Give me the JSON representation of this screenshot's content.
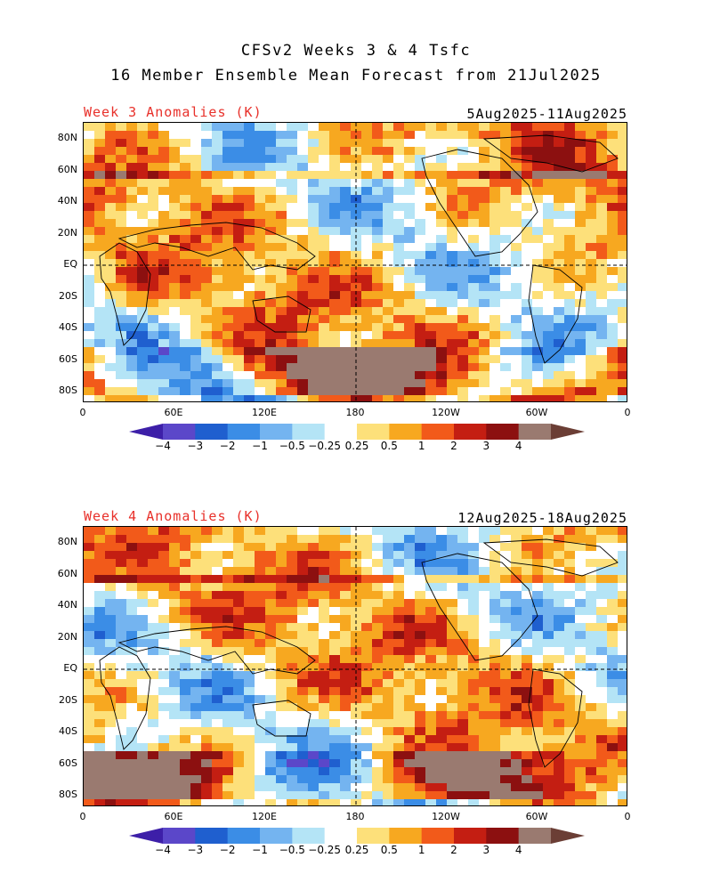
{
  "header": {
    "line1": "CFSv2 Weeks 3 & 4 Tsfc",
    "line2": "16 Member Ensemble Mean Forecast from 21Jul2025"
  },
  "panels": [
    {
      "label": "Week 3 Anomalies (K)",
      "dates": "5Aug2025-11Aug2025"
    },
    {
      "label": "Week 4 Anomalies (K)",
      "dates": "12Aug2025-18Aug2025"
    }
  ],
  "axes": {
    "lat_labels": [
      "80N",
      "60N",
      "40N",
      "20N",
      "EQ",
      "20S",
      "40S",
      "60S",
      "80S"
    ],
    "lon_labels": [
      "0",
      "60E",
      "120E",
      "180",
      "120W",
      "60W",
      "0"
    ]
  },
  "colorbar": {
    "labels": [
      "-4",
      "-3",
      "-2",
      "-1",
      "-0.5",
      "-0.25",
      "0.25",
      "0.5",
      "1",
      "2",
      "3",
      "4"
    ],
    "colors": [
      "#3d1fa8",
      "#5b47c9",
      "#1f5fcf",
      "#3b8de6",
      "#74b4f0",
      "#b4e4f6",
      "#ffffff",
      "#fde07a",
      "#f7a820",
      "#f25a1a",
      "#c41e12",
      "#8c1010",
      "#9a7a70",
      "#6b3e35"
    ]
  }
}
